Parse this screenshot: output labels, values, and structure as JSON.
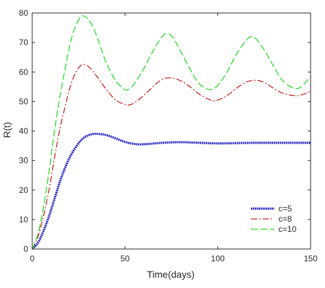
{
  "chart_data": {
    "type": "line",
    "xlabel": "Time(days)",
    "ylabel": "R(t)",
    "xlim": [
      0,
      150
    ],
    "ylim": [
      0,
      80
    ],
    "xticks": [
      0,
      50,
      100,
      150
    ],
    "yticks": [
      0,
      10,
      20,
      30,
      40,
      50,
      60,
      70,
      80
    ],
    "grid": false,
    "legend_position": "bottom-right",
    "series": [
      {
        "name": "c=5",
        "color": "#1f1fbf",
        "style": "dotted",
        "x": [
          0,
          3,
          6,
          9,
          12,
          15,
          18,
          21,
          24,
          27,
          30,
          33,
          36,
          40,
          45,
          50,
          55,
          60,
          70,
          80,
          90,
          100,
          110,
          120,
          130,
          140,
          150
        ],
        "y": [
          0,
          2,
          6,
          11,
          17,
          23,
          28,
          32,
          35,
          37.3,
          38.5,
          39,
          39,
          38.6,
          37.5,
          36.3,
          35.6,
          35.5,
          36,
          36.2,
          36,
          35.8,
          35.9,
          36,
          36,
          36,
          36
        ]
      },
      {
        "name": "c=8",
        "color": "#cc2222",
        "style": "dashdot",
        "x": [
          0,
          3,
          6,
          9,
          12,
          15,
          18,
          21,
          24,
          27,
          30,
          33,
          36,
          40,
          45,
          50,
          52,
          55,
          60,
          65,
          70,
          75,
          80,
          85,
          90,
          97,
          100,
          105,
          110,
          115,
          120,
          125,
          130,
          135,
          141,
          145,
          150
        ],
        "y": [
          0,
          4,
          11,
          20,
          31,
          41,
          49,
          56,
          60.5,
          62.5,
          62,
          60,
          57.5,
          54,
          50.5,
          49,
          48.8,
          49.5,
          52,
          55,
          57.5,
          58,
          57,
          55,
          52.5,
          50.3,
          50.5,
          52,
          54.5,
          56.5,
          57.2,
          56.5,
          54.5,
          52.8,
          52,
          52.2,
          53.5
        ]
      },
      {
        "name": "c=10",
        "color": "#22dd22",
        "style": "dashed",
        "x": [
          0,
          3,
          6,
          9,
          12,
          15,
          18,
          21,
          24,
          27,
          30,
          33,
          36,
          40,
          45,
          50,
          52,
          55,
          60,
          65,
          70,
          73,
          76,
          80,
          85,
          90,
          96,
          100,
          105,
          110,
          115,
          118,
          121,
          125,
          130,
          135,
          141,
          145,
          150
        ],
        "y": [
          0,
          5,
          14,
          26,
          40,
          52,
          62,
          71,
          76.5,
          79,
          78,
          75,
          70,
          63,
          57,
          54,
          54.2,
          56,
          61,
          67,
          72,
          73,
          71.5,
          67,
          61,
          56,
          54,
          55.5,
          60,
          66,
          70.5,
          72,
          71,
          67.5,
          62,
          57,
          54.5,
          55,
          58.5
        ]
      }
    ]
  }
}
